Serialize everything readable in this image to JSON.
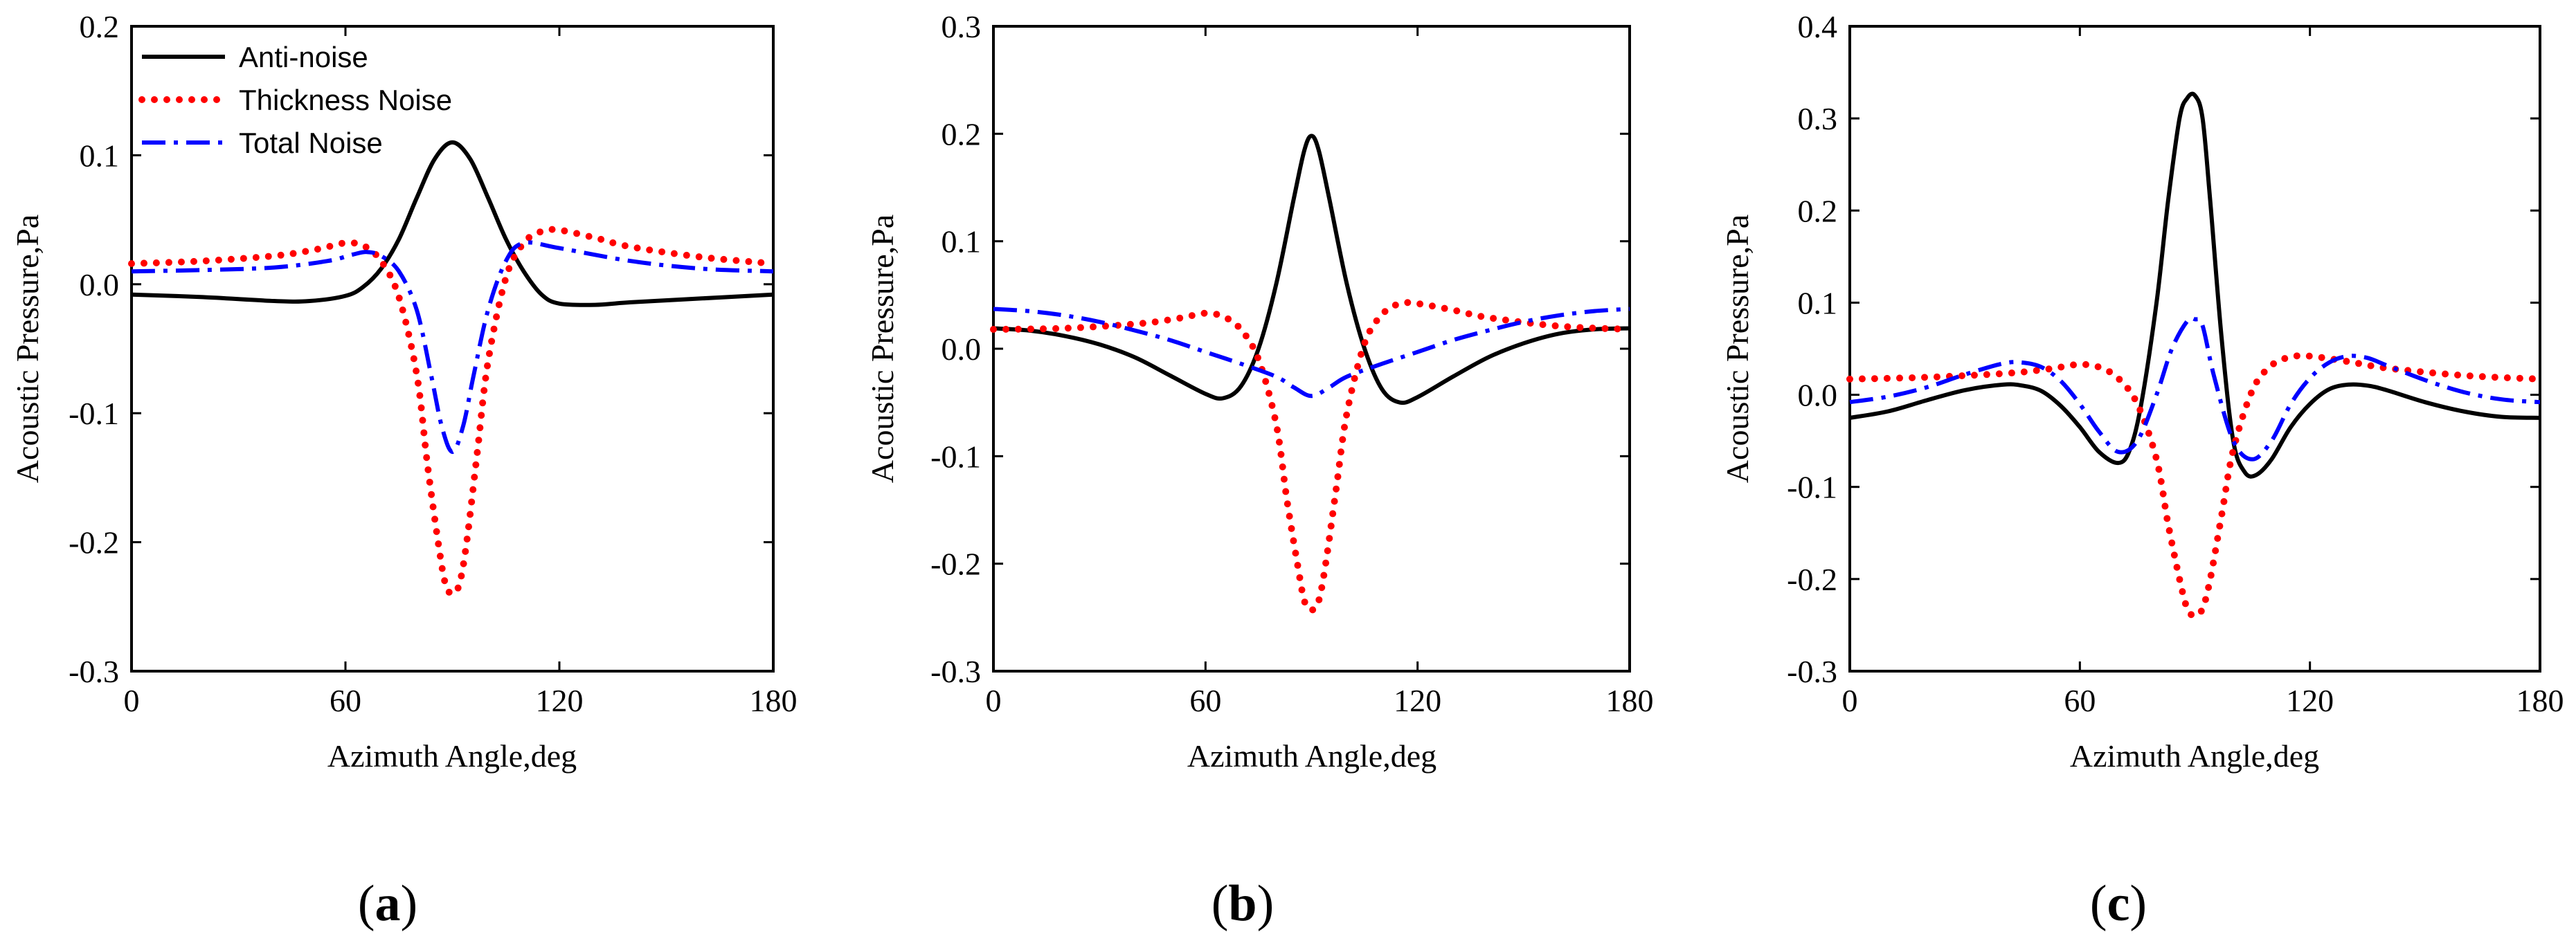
{
  "colors": {
    "anti": "#000000",
    "thickness": "#ff0000",
    "total": "#0000ff"
  },
  "legend": [
    {
      "name": "Anti-noise",
      "color": "#000000",
      "style": "solid"
    },
    {
      "name": "Thickness Noise",
      "color": "#ff0000",
      "style": "dotted"
    },
    {
      "name": "Total Noise",
      "color": "#0000ff",
      "style": "dashdot"
    }
  ],
  "panel_labels": [
    {
      "open": "(",
      "letter": "a",
      "close": ")"
    },
    {
      "open": "(",
      "letter": "b",
      "close": ")"
    },
    {
      "open": "(",
      "letter": "c",
      "close": ")"
    }
  ],
  "chart_data": [
    {
      "type": "line",
      "xlabel": "Azimuth Angle,deg",
      "ylabel": "Acoustic Pressure,Pa",
      "xlim": [
        0,
        180
      ],
      "ylim": [
        -0.3,
        0.2
      ],
      "xticks": [
        "0",
        "60",
        "120",
        "180"
      ],
      "yticks": [
        "-0.3",
        "-0.2",
        "-0.1",
        "0.0",
        "0.1",
        "0.2"
      ],
      "legend_position": "top-left",
      "series": [
        {
          "name": "Anti-noise",
          "x": [
            0,
            20,
            40,
            50,
            60,
            65,
            70,
            75,
            80,
            85,
            90,
            95,
            100,
            105,
            110,
            115,
            120,
            130,
            140,
            160,
            180
          ],
          "values": [
            -0.008,
            -0.01,
            -0.013,
            -0.013,
            -0.009,
            -0.002,
            0.012,
            0.035,
            0.067,
            0.097,
            0.11,
            0.097,
            0.067,
            0.035,
            0.01,
            -0.008,
            -0.015,
            -0.016,
            -0.014,
            -0.011,
            -0.008
          ]
        },
        {
          "name": "Thickness Noise",
          "x": [
            0,
            20,
            40,
            50,
            55,
            60,
            65,
            70,
            75,
            80,
            83,
            86,
            88,
            90,
            92,
            94,
            97,
            100,
            105,
            110,
            115,
            120,
            130,
            140,
            160,
            180
          ],
          "values": [
            0.016,
            0.018,
            0.022,
            0.026,
            0.029,
            0.032,
            0.03,
            0.018,
            -0.01,
            -0.07,
            -0.14,
            -0.2,
            -0.232,
            -0.24,
            -0.232,
            -0.2,
            -0.13,
            -0.06,
            0.005,
            0.032,
            0.041,
            0.042,
            0.036,
            0.029,
            0.021,
            0.016
          ]
        },
        {
          "name": "Total Noise",
          "x": [
            0,
            20,
            40,
            55,
            62,
            66,
            70,
            75,
            80,
            84,
            87,
            90,
            93,
            96,
            100,
            105,
            110,
            120,
            140,
            160,
            180
          ],
          "values": [
            0.01,
            0.011,
            0.013,
            0.018,
            0.023,
            0.025,
            0.022,
            0.01,
            -0.02,
            -0.07,
            -0.11,
            -0.13,
            -0.11,
            -0.07,
            -0.02,
            0.018,
            0.032,
            0.028,
            0.018,
            0.012,
            0.01
          ]
        }
      ]
    },
    {
      "type": "line",
      "xlabel": "Azimuth Angle,deg",
      "ylabel": "Acoustic Pressure,Pa",
      "xlim": [
        0,
        180
      ],
      "ylim": [
        -0.3,
        0.3
      ],
      "xticks": [
        "0",
        "60",
        "120",
        "180"
      ],
      "yticks": [
        "-0.3",
        "-0.2",
        "-0.1",
        "0.0",
        "0.1",
        "0.2",
        "0.3"
      ],
      "series": [
        {
          "name": "Anti-noise",
          "x": [
            0,
            10,
            20,
            30,
            40,
            50,
            60,
            65,
            70,
            75,
            80,
            85,
            88,
            90,
            92,
            95,
            100,
            105,
            110,
            115,
            120,
            130,
            140,
            150,
            160,
            170,
            180
          ],
          "values": [
            0.019,
            0.017,
            0.012,
            0.004,
            -0.008,
            -0.025,
            -0.042,
            -0.046,
            -0.035,
            0.0,
            0.06,
            0.14,
            0.185,
            0.198,
            0.185,
            0.14,
            0.06,
            0.0,
            -0.038,
            -0.05,
            -0.045,
            -0.026,
            -0.008,
            0.005,
            0.014,
            0.018,
            0.019
          ]
        },
        {
          "name": "Thickness Noise",
          "x": [
            0,
            20,
            40,
            50,
            55,
            60,
            65,
            70,
            75,
            80,
            83,
            86,
            88,
            90,
            92,
            94,
            97,
            100,
            105,
            110,
            115,
            120,
            130,
            140,
            160,
            180
          ],
          "values": [
            0.018,
            0.019,
            0.023,
            0.027,
            0.03,
            0.033,
            0.03,
            0.018,
            -0.01,
            -0.07,
            -0.14,
            -0.2,
            -0.235,
            -0.243,
            -0.235,
            -0.2,
            -0.13,
            -0.06,
            0.005,
            0.032,
            0.042,
            0.042,
            0.036,
            0.029,
            0.021,
            0.018
          ]
        },
        {
          "name": "Total Noise",
          "x": [
            0,
            10,
            20,
            30,
            40,
            50,
            60,
            70,
            80,
            85,
            90,
            95,
            100,
            110,
            120,
            130,
            140,
            150,
            160,
            170,
            180
          ],
          "values": [
            0.037,
            0.035,
            0.031,
            0.025,
            0.017,
            0.008,
            -0.003,
            -0.014,
            -0.026,
            -0.036,
            -0.044,
            -0.036,
            -0.026,
            -0.014,
            -0.003,
            0.008,
            0.017,
            0.025,
            0.031,
            0.035,
            0.037
          ]
        }
      ]
    },
    {
      "type": "line",
      "xlabel": "Azimuth Angle,deg",
      "ylabel": "Acoustic Pressure,Pa",
      "xlim": [
        0,
        180
      ],
      "ylim": [
        -0.3,
        0.4
      ],
      "xticks": [
        "0",
        "60",
        "120",
        "180"
      ],
      "yticks": [
        "-0.3",
        "-0.2",
        "-0.1",
        "0.0",
        "0.1",
        "0.2",
        "0.3",
        "0.4"
      ],
      "series": [
        {
          "name": "Anti-noise",
          "x": [
            0,
            10,
            20,
            30,
            40,
            45,
            50,
            55,
            60,
            65,
            70,
            73,
            76,
            80,
            83,
            86,
            88,
            90,
            92,
            94,
            97,
            100,
            103,
            106,
            110,
            115,
            120,
            125,
            130,
            135,
            140,
            150,
            160,
            170,
            180
          ],
          "values": [
            -0.025,
            -0.018,
            -0.006,
            0.005,
            0.011,
            0.01,
            0.004,
            -0.012,
            -0.035,
            -0.062,
            -0.074,
            -0.06,
            -0.01,
            0.1,
            0.21,
            0.3,
            0.322,
            0.325,
            0.3,
            0.21,
            0.06,
            -0.05,
            -0.084,
            -0.087,
            -0.07,
            -0.035,
            -0.01,
            0.006,
            0.011,
            0.01,
            0.005,
            -0.008,
            -0.018,
            -0.024,
            -0.025
          ]
        },
        {
          "name": "Thickness Noise",
          "x": [
            0,
            20,
            40,
            50,
            55,
            60,
            65,
            70,
            75,
            80,
            83,
            86,
            88,
            90,
            92,
            94,
            97,
            100,
            105,
            110,
            115,
            120,
            130,
            140,
            160,
            180
          ],
          "values": [
            0.017,
            0.019,
            0.023,
            0.027,
            0.03,
            0.033,
            0.03,
            0.018,
            -0.01,
            -0.07,
            -0.14,
            -0.2,
            -0.232,
            -0.24,
            -0.232,
            -0.2,
            -0.13,
            -0.06,
            0.005,
            0.032,
            0.041,
            0.042,
            0.036,
            0.029,
            0.021,
            0.017
          ]
        },
        {
          "name": "Total Noise",
          "x": [
            0,
            10,
            20,
            30,
            40,
            45,
            50,
            55,
            60,
            65,
            70,
            75,
            80,
            84,
            88,
            90,
            92,
            95,
            100,
            105,
            110,
            115,
            120,
            125,
            130,
            135,
            140,
            150,
            160,
            170,
            180
          ],
          "values": [
            -0.008,
            -0.002,
            0.008,
            0.022,
            0.034,
            0.035,
            0.03,
            0.015,
            -0.01,
            -0.04,
            -0.062,
            -0.05,
            0.0,
            0.05,
            0.08,
            0.082,
            0.075,
            0.02,
            -0.05,
            -0.07,
            -0.05,
            -0.01,
            0.018,
            0.035,
            0.042,
            0.04,
            0.032,
            0.016,
            0.003,
            -0.005,
            -0.008
          ]
        }
      ]
    }
  ]
}
